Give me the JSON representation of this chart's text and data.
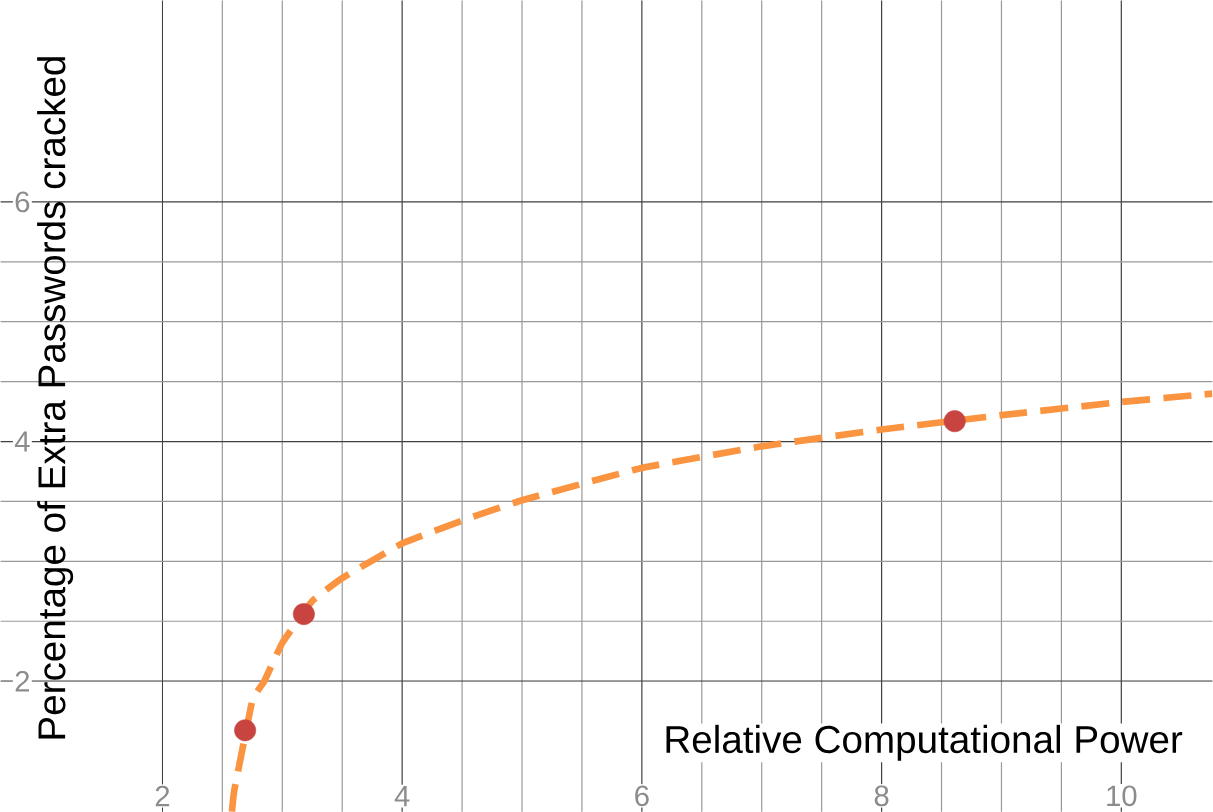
{
  "chart_data": {
    "type": "scatter",
    "xlabel": "Relative Computational Power",
    "ylabel": "Percentage of Extra Passwords cracked",
    "xlim": [
      0.65,
      10.76
    ],
    "ylim": [
      0.91,
      7.68
    ],
    "xticks": [
      2,
      4,
      6,
      8,
      10
    ],
    "yticks": [
      2,
      4,
      6
    ],
    "grid": true,
    "series": [
      {
        "type": "line",
        "color": "#fa9440",
        "line_style": "dashed",
        "marker": "none",
        "x": [
          2.58,
          2.6,
          2.75,
          2.85,
          3.0,
          3.25,
          3.5,
          4.0,
          4.5,
          5.0,
          6.0,
          7.0,
          8.0,
          9.0,
          10.0,
          10.76
        ],
        "values": [
          0.91,
          1.09,
          1.84,
          2.0,
          2.32,
          2.67,
          2.86,
          3.15,
          3.34,
          3.51,
          3.78,
          3.96,
          4.1,
          4.22,
          4.33,
          4.4
        ]
      },
      {
        "type": "scatter",
        "color": "#c74440",
        "marker": "circle",
        "x": [
          2.69,
          3.18,
          8.61
        ],
        "values": [
          1.59,
          2.56,
          4.17
        ]
      }
    ]
  }
}
